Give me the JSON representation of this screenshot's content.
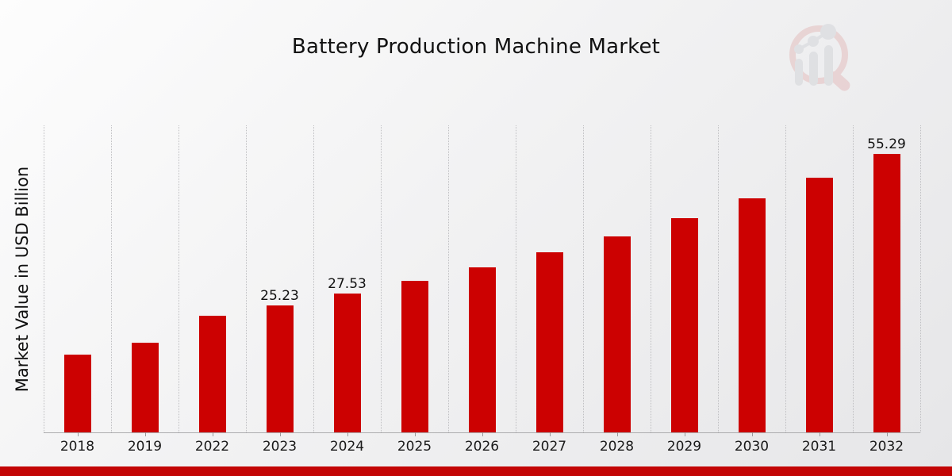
{
  "title": "Battery Production Machine Market",
  "y_axis_label": "Market Value in USD Billion",
  "watermark_icon": "magnifier-growth-chart-logo",
  "colors": {
    "bar": "#cc0101",
    "footer_bar": "#c30505",
    "gridline": "#bfbfc2",
    "background_start": "#fdfdfd",
    "background_end": "#e6e6e8",
    "text": "#111111"
  },
  "chart_data": {
    "type": "bar",
    "title": "Battery Production Machine Market",
    "xlabel": "",
    "ylabel": "Market Value in USD Billion",
    "categories": [
      "2018",
      "2019",
      "2022",
      "2023",
      "2024",
      "2025",
      "2026",
      "2027",
      "2028",
      "2029",
      "2030",
      "2031",
      "2032"
    ],
    "values": [
      15.4,
      17.8,
      23.1,
      25.23,
      27.53,
      30.04,
      32.77,
      35.76,
      39.01,
      42.56,
      46.43,
      50.65,
      55.29
    ],
    "bar_labels": [
      "",
      "",
      "",
      "25.23",
      "27.53",
      "",
      "",
      "",
      "",
      "",
      "",
      "",
      "55.29"
    ],
    "ylim": [
      0,
      61
    ],
    "grid": "vertical-dotted",
    "legend_position": "none",
    "bar_color": "#cc0101"
  }
}
